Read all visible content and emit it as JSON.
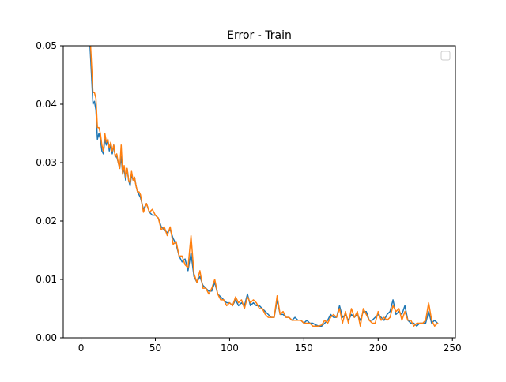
{
  "chart_data": {
    "type": "line",
    "title": "Error - Train",
    "xlabel": "",
    "ylabel": "",
    "xlim": [
      -12,
      252
    ],
    "ylim": [
      0.0,
      0.05
    ],
    "xticks": [
      0,
      50,
      100,
      150,
      200,
      250
    ],
    "xtick_labels": [
      "0",
      "50",
      "100",
      "150",
      "200",
      "250"
    ],
    "yticks": [
      0.0,
      0.01,
      0.02,
      0.03,
      0.04,
      0.05
    ],
    "ytick_labels": [
      "0.00",
      "0.01",
      "0.02",
      "0.03",
      "0.04",
      "0.05"
    ],
    "grid": false,
    "legend": "top-right (empty)",
    "series": [
      {
        "color": "#1f77b4",
        "x": [
          5,
          6,
          7,
          8,
          9,
          10,
          11,
          12,
          13,
          14,
          15,
          16,
          17,
          18,
          19,
          20,
          21,
          22,
          23,
          24,
          25,
          26,
          27,
          28,
          29,
          30,
          31,
          32,
          33,
          34,
          35,
          36,
          37,
          38,
          39,
          40,
          42,
          44,
          46,
          48,
          50,
          52,
          54,
          56,
          58,
          60,
          62,
          64,
          66,
          68,
          70,
          72,
          74,
          76,
          78,
          80,
          82,
          84,
          86,
          88,
          90,
          92,
          94,
          96,
          98,
          100,
          102,
          104,
          106,
          108,
          110,
          112,
          114,
          116,
          118,
          120,
          122,
          124,
          126,
          128,
          130,
          132,
          134,
          136,
          138,
          140,
          142,
          144,
          146,
          148,
          150,
          152,
          154,
          156,
          158,
          160,
          162,
          164,
          166,
          168,
          170,
          172,
          174,
          176,
          178,
          180,
          182,
          184,
          186,
          188,
          190,
          192,
          194,
          196,
          198,
          200,
          202,
          204,
          206,
          208,
          210,
          212,
          214,
          216,
          218,
          220,
          222,
          224,
          226,
          228,
          230,
          232,
          234,
          236,
          238,
          240
        ],
        "values": [
          0.06,
          0.05,
          0.045,
          0.04,
          0.0405,
          0.039,
          0.034,
          0.035,
          0.034,
          0.032,
          0.0315,
          0.034,
          0.033,
          0.034,
          0.032,
          0.033,
          0.0315,
          0.033,
          0.031,
          0.031,
          0.03,
          0.029,
          0.031,
          0.028,
          0.029,
          0.027,
          0.029,
          0.027,
          0.026,
          0.028,
          0.027,
          0.0275,
          0.026,
          0.025,
          0.0245,
          0.024,
          0.022,
          0.023,
          0.0215,
          0.021,
          0.021,
          0.0205,
          0.019,
          0.0185,
          0.018,
          0.0185,
          0.017,
          0.016,
          0.014,
          0.013,
          0.0135,
          0.0115,
          0.0145,
          0.0105,
          0.0095,
          0.0105,
          0.009,
          0.0085,
          0.008,
          0.008,
          0.0095,
          0.0075,
          0.007,
          0.0065,
          0.006,
          0.006,
          0.0055,
          0.0065,
          0.0055,
          0.006,
          0.0055,
          0.0075,
          0.0055,
          0.006,
          0.0055,
          0.0055,
          0.005,
          0.0045,
          0.004,
          0.0035,
          0.0035,
          0.0065,
          0.004,
          0.004,
          0.0035,
          0.0035,
          0.003,
          0.0035,
          0.003,
          0.003,
          0.0025,
          0.003,
          0.0025,
          0.0025,
          0.0022,
          0.002,
          0.002,
          0.0025,
          0.003,
          0.004,
          0.0035,
          0.0035,
          0.0055,
          0.0035,
          0.004,
          0.003,
          0.004,
          0.0035,
          0.004,
          0.003,
          0.0045,
          0.0045,
          0.003,
          0.003,
          0.0035,
          0.004,
          0.0035,
          0.003,
          0.004,
          0.0045,
          0.0065,
          0.004,
          0.0045,
          0.004,
          0.0055,
          0.003,
          0.0025,
          0.0025,
          0.002,
          0.0025,
          0.0025,
          0.0025,
          0.0045,
          0.0025,
          0.003,
          0.0025
        ]
      },
      {
        "color": "#ff7f0e",
        "x": [
          5,
          6,
          7,
          8,
          9,
          10,
          11,
          12,
          13,
          14,
          15,
          16,
          17,
          18,
          19,
          20,
          21,
          22,
          23,
          24,
          25,
          26,
          27,
          28,
          29,
          30,
          31,
          32,
          33,
          34,
          35,
          36,
          37,
          38,
          39,
          40,
          42,
          44,
          46,
          48,
          50,
          52,
          54,
          56,
          58,
          60,
          62,
          64,
          66,
          68,
          70,
          72,
          74,
          76,
          78,
          80,
          82,
          84,
          86,
          88,
          90,
          92,
          94,
          96,
          98,
          100,
          102,
          104,
          106,
          108,
          110,
          112,
          114,
          116,
          118,
          120,
          122,
          124,
          126,
          128,
          130,
          132,
          134,
          136,
          138,
          140,
          142,
          144,
          146,
          148,
          150,
          152,
          154,
          156,
          158,
          160,
          162,
          164,
          166,
          168,
          170,
          172,
          174,
          176,
          178,
          180,
          182,
          184,
          186,
          188,
          190,
          192,
          194,
          196,
          198,
          200,
          202,
          204,
          206,
          208,
          210,
          212,
          214,
          216,
          218,
          220,
          222,
          224,
          226,
          228,
          230,
          232,
          234,
          236,
          238,
          240
        ],
        "values": [
          0.062,
          0.052,
          0.047,
          0.042,
          0.042,
          0.041,
          0.036,
          0.036,
          0.035,
          0.033,
          0.032,
          0.035,
          0.0335,
          0.034,
          0.0325,
          0.0335,
          0.032,
          0.033,
          0.031,
          0.0315,
          0.03,
          0.029,
          0.033,
          0.028,
          0.0295,
          0.0275,
          0.029,
          0.027,
          0.0265,
          0.0285,
          0.027,
          0.0275,
          0.026,
          0.025,
          0.025,
          0.0245,
          0.0215,
          0.023,
          0.0215,
          0.022,
          0.021,
          0.0205,
          0.0185,
          0.019,
          0.0175,
          0.019,
          0.016,
          0.0165,
          0.014,
          0.014,
          0.0125,
          0.012,
          0.0175,
          0.011,
          0.0095,
          0.0115,
          0.0085,
          0.0085,
          0.0075,
          0.0085,
          0.01,
          0.0075,
          0.0065,
          0.0065,
          0.0055,
          0.006,
          0.0055,
          0.007,
          0.006,
          0.0065,
          0.005,
          0.007,
          0.006,
          0.0065,
          0.006,
          0.005,
          0.005,
          0.004,
          0.0035,
          0.0035,
          0.0035,
          0.0072,
          0.004,
          0.0045,
          0.0035,
          0.0035,
          0.003,
          0.003,
          0.003,
          0.003,
          0.0025,
          0.0025,
          0.0025,
          0.002,
          0.002,
          0.002,
          0.0022,
          0.003,
          0.0025,
          0.0035,
          0.004,
          0.0035,
          0.005,
          0.0025,
          0.0045,
          0.0025,
          0.005,
          0.0035,
          0.0045,
          0.002,
          0.005,
          0.004,
          0.003,
          0.0025,
          0.0025,
          0.0045,
          0.003,
          0.0035,
          0.003,
          0.0035,
          0.0055,
          0.0045,
          0.005,
          0.003,
          0.0045,
          0.003,
          0.003,
          0.002,
          0.0025,
          0.0025,
          0.0025,
          0.003,
          0.006,
          0.003,
          0.002,
          0.0025
        ]
      }
    ]
  }
}
